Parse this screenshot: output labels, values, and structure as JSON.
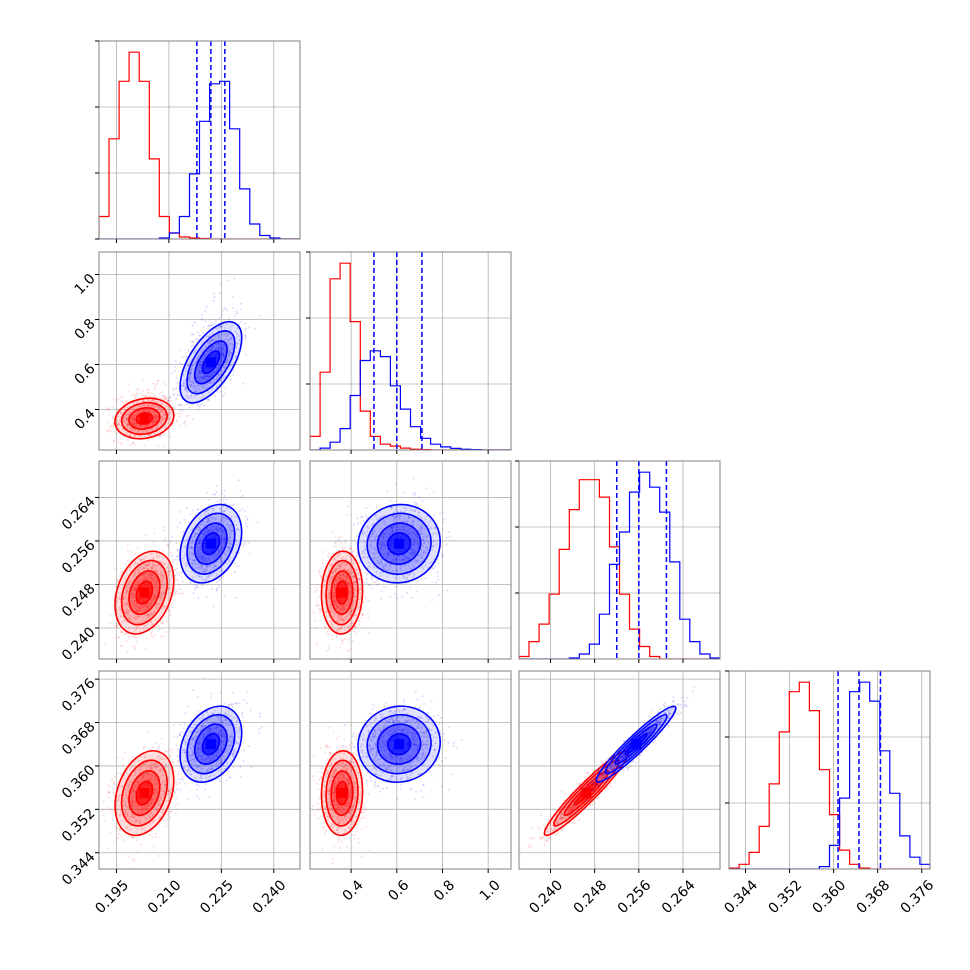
{
  "chart_data": {
    "type": "corner",
    "grid": true,
    "series": [
      {
        "color": "#ff0000",
        "params": [
          {
            "hist": [
              0.45,
              2.0,
              3.15,
              3.73,
              3.15,
              1.6,
              0.45,
              0.12,
              0.04,
              0.02,
              0.01,
              0.0,
              0.0,
              0.0,
              0.0,
              0.0,
              0.0,
              0.0,
              0.0,
              0.0
            ]
          },
          {
            "hist": [
              0.35,
              2.0,
              4.4,
              4.8,
              3.3,
              1.0,
              0.35,
              0.15,
              0.1,
              0.05,
              0.02,
              0.01,
              0.0,
              0.0,
              0.0,
              0.0,
              0.0,
              0.0,
              0.0,
              0.0
            ]
          },
          {
            "hist": [
              0.05,
              0.35,
              0.7,
              1.3,
              2.2,
              3.0,
              3.6,
              3.6,
              3.25,
              2.25,
              1.3,
              0.6,
              0.25,
              0.05,
              0.0,
              0.0,
              0.0,
              0.0,
              0.0,
              0.0
            ]
          },
          {
            "hist": [
              0.02,
              0.1,
              0.35,
              0.9,
              1.8,
              2.9,
              3.75,
              3.95,
              3.35,
              2.1,
              1.15,
              0.4,
              0.1,
              0.02,
              0.0,
              0.0,
              0.0,
              0.0,
              0.0,
              0.0
            ]
          }
        ],
        "mean": [
          0.203,
          0.36,
          0.2465,
          0.355
        ],
        "sd": [
          0.0042,
          0.045,
          0.0038,
          0.0039
        ],
        "corr": {
          "0-1": 0.15,
          "0-2": 0.3,
          "0-3": 0.3,
          "1-2": 0.05,
          "1-3": 0.05,
          "2-3": 0.95
        }
      },
      {
        "color": "#0000ff",
        "params": [
          {
            "hist": [
              0.0,
              0.0,
              0.0,
              0.0,
              0.0,
              0.0,
              0.02,
              0.12,
              0.45,
              1.3,
              2.35,
              3.1,
              3.15,
              2.2,
              1.0,
              0.3,
              0.07,
              0.02,
              0.0,
              0.0
            ]
          },
          {
            "hist": [
              0.0,
              0.05,
              0.2,
              0.55,
              1.4,
              2.3,
              2.55,
              2.4,
              1.65,
              1.05,
              0.6,
              0.3,
              0.15,
              0.08,
              0.04,
              0.02,
              0.01,
              0.0,
              0.0,
              0.0
            ]
          },
          {
            "hist": [
              0.0,
              0.0,
              0.0,
              0.0,
              0.0,
              0.02,
              0.1,
              0.3,
              0.9,
              1.9,
              2.55,
              3.35,
              3.75,
              3.45,
              2.95,
              1.95,
              0.8,
              0.35,
              0.1,
              0.02
            ]
          },
          {
            "hist": [
              0.0,
              0.0,
              0.0,
              0.0,
              0.0,
              0.0,
              0.0,
              0.0,
              0.0,
              0.05,
              0.5,
              1.5,
              3.75,
              3.95,
              3.55,
              2.5,
              1.6,
              0.7,
              0.25,
              0.1
            ]
          }
        ],
        "mean": [
          0.222,
          0.61,
          0.2555,
          0.364
        ],
        "sd": [
          0.0044,
          0.09,
          0.0036,
          0.0035
        ],
        "corr": {
          "0-1": 0.6,
          "0-2": 0.3,
          "0-3": 0.3,
          "1-2": 0.05,
          "1-3": 0.05,
          "2-3": 0.95
        },
        "quantiles": [
          [
            0.218,
            0.222,
            0.226
          ],
          [
            0.5,
            0.6,
            0.71
          ],
          [
            0.252,
            0.256,
            0.261
          ],
          [
            0.3608,
            0.3646,
            0.3685
          ]
        ]
      }
    ],
    "axes": [
      {
        "range": [
          0.19,
          0.2475
        ],
        "ticks": [
          "0.195",
          "0.210",
          "0.225",
          "0.240"
        ],
        "tick_values": [
          0.195,
          0.21,
          0.225,
          0.24
        ]
      },
      {
        "range": [
          0.22,
          1.1
        ],
        "ticks": [
          "0.4",
          "0.6",
          "0.8",
          "1.0"
        ],
        "tick_values": [
          0.4,
          0.6,
          0.8,
          1.0
        ]
      },
      {
        "range": [
          0.2343,
          0.2707
        ],
        "ticks": [
          "0.240",
          "0.248",
          "0.256",
          "0.264"
        ],
        "tick_values": [
          0.24,
          0.248,
          0.256,
          0.264
        ]
      },
      {
        "range": [
          0.341,
          0.3775
        ],
        "ticks": [
          "0.344",
          "0.352",
          "0.360",
          "0.368",
          "0.376"
        ],
        "tick_values": [
          0.344,
          0.352,
          0.36,
          0.368,
          0.376
        ]
      }
    ]
  }
}
